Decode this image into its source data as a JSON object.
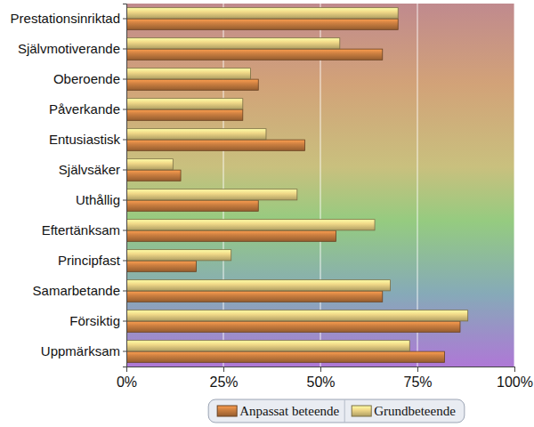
{
  "chart_data": {
    "type": "bar",
    "orientation": "horizontal",
    "grid": true,
    "legend": "bottom",
    "categories": [
      "Prestationsinriktad",
      "Självmotiverande",
      "Oberoende",
      "Påverkande",
      "Entusiastisk",
      "Självsäker",
      "Uthållig",
      "Eftertänksam",
      "Principfast",
      "Samarbetande",
      "Försiktig",
      "Uppmärksam"
    ],
    "series": [
      {
        "name": "Anpassat beteende",
        "color": "#b8733a",
        "values": [
          70,
          66,
          34,
          30,
          46,
          14,
          34,
          54,
          18,
          66,
          86,
          82
        ]
      },
      {
        "name": "Grundbeteende",
        "color": "#d8c27a",
        "values": [
          70,
          55,
          32,
          30,
          36,
          12,
          44,
          64,
          27,
          68,
          88,
          73
        ]
      }
    ],
    "xlim": [
      0,
      100
    ],
    "xticks": [
      {
        "value": 0,
        "label": "0%"
      },
      {
        "value": 25,
        "label": "25%"
      },
      {
        "value": 50,
        "label": "50%"
      },
      {
        "value": 75,
        "label": "75%"
      },
      {
        "value": 100,
        "label": "100%"
      }
    ]
  }
}
